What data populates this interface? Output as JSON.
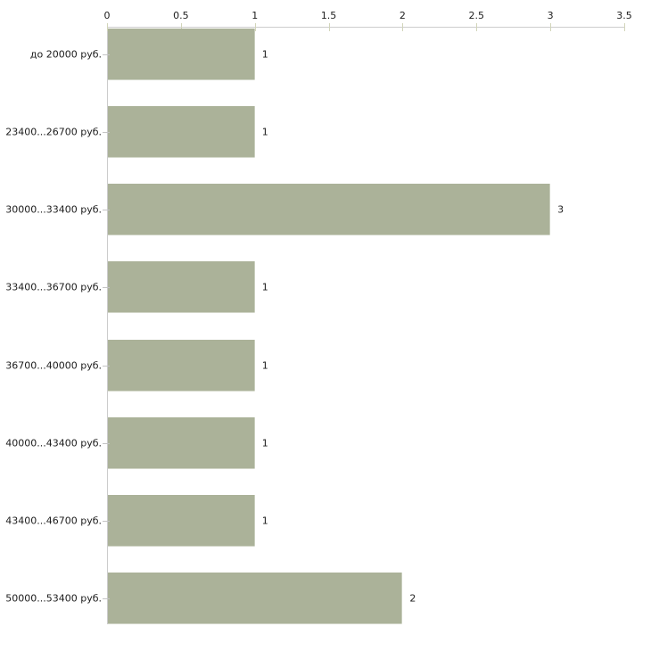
{
  "chart_data": {
    "type": "bar",
    "orientation": "horizontal",
    "title": "",
    "xlabel": "",
    "ylabel": "",
    "grid": false,
    "legend": "none",
    "axis_position": "top",
    "categories": [
      "до 20000 руб.",
      "23400...26700 руб.",
      "30000...33400 руб.",
      "33400...36700 руб.",
      "36700...40000 руб.",
      "40000...43400 руб.",
      "43400...46700 руб.",
      "50000...53400 руб."
    ],
    "values": [
      1,
      1,
      3,
      1,
      1,
      1,
      1,
      2
    ],
    "value_labels": [
      "1",
      "1",
      "3",
      "1",
      "1",
      "1",
      "1",
      "2"
    ],
    "x_tick_labels": [
      "0",
      "0.5",
      "1",
      "1.5",
      "2",
      "2.5",
      "3",
      "3.5"
    ],
    "x_tick_values": [
      0,
      0.5,
      1,
      1.5,
      2,
      2.5,
      3,
      3.5
    ],
    "xlim": [
      0,
      3.5
    ],
    "colors": {
      "bar_fill": "#abb299",
      "axis_line": "#cccccc",
      "x_tick_mark": "#d2d5ba",
      "category_tick_mark": "#c4c4c4",
      "text": "#1c1c1c",
      "background": "#ffffff"
    }
  }
}
